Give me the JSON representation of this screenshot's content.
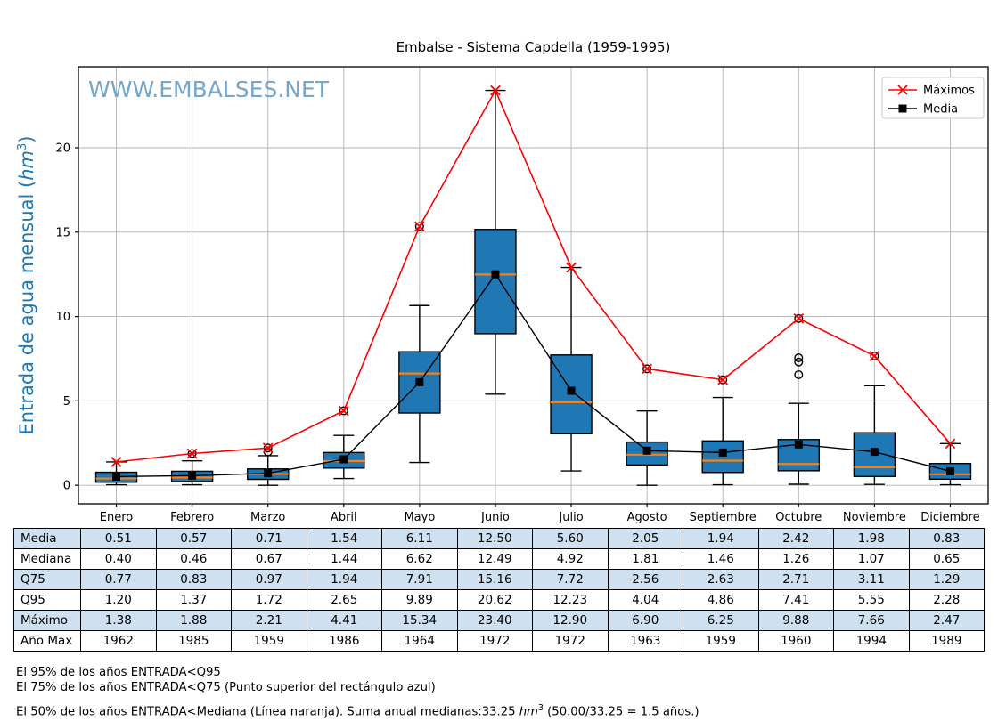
{
  "chart_data": {
    "type": "boxplot",
    "title": "Embalse - Sistema Capdella (1959-1995)",
    "watermark": "WWW.EMBALSES.NET",
    "ylabel": {
      "pre": "Entrada de agua mensual (",
      "unit": "hm",
      "exp": "3",
      "post": ")"
    },
    "categories": [
      "Enero",
      "Febrero",
      "Marzo",
      "Abril",
      "Mayo",
      "Junio",
      "Julio",
      "Agosto",
      "Septiembre",
      "Octubre",
      "Noviembre",
      "Diciembre"
    ],
    "ylim": [
      -1.1,
      24.8
    ],
    "yticks": [
      0,
      5,
      10,
      15,
      20
    ],
    "grid": true,
    "legend": {
      "position": "top-right",
      "items": [
        {
          "label": "Máximos",
          "marker": "x",
          "color": "#ff0000"
        },
        {
          "label": "Media",
          "marker": "square",
          "color": "#000000"
        }
      ]
    },
    "series": [
      {
        "name": "Máximos",
        "type": "line",
        "marker": "x",
        "color": "#ff0000",
        "values": [
          1.38,
          1.88,
          2.21,
          4.41,
          15.34,
          23.4,
          12.9,
          6.9,
          6.25,
          9.88,
          7.66,
          2.47
        ]
      },
      {
        "name": "Media",
        "type": "line",
        "marker": "square",
        "color": "#000000",
        "values": [
          0.51,
          0.57,
          0.71,
          1.54,
          6.11,
          12.5,
          5.6,
          2.05,
          1.94,
          2.42,
          1.98,
          0.83
        ]
      }
    ],
    "boxes": {
      "median": [
        0.4,
        0.46,
        0.67,
        1.44,
        6.62,
        12.49,
        4.92,
        1.81,
        1.46,
        1.26,
        1.07,
        0.65
      ],
      "q1": [
        0.18,
        0.22,
        0.35,
        1.02,
        4.28,
        8.98,
        3.05,
        1.2,
        0.76,
        0.86,
        0.52,
        0.36
      ],
      "q3": [
        0.77,
        0.83,
        0.97,
        1.94,
        7.91,
        15.16,
        7.72,
        2.56,
        2.63,
        2.71,
        3.11,
        1.29
      ],
      "whisker_low": [
        0.03,
        0.03,
        0.0,
        0.4,
        1.35,
        5.4,
        0.85,
        0.0,
        0.03,
        0.06,
        0.05,
        0.03
      ],
      "whisker_high": [
        1.38,
        1.45,
        1.75,
        2.95,
        10.65,
        23.4,
        12.9,
        4.4,
        5.2,
        4.85,
        5.9,
        2.47
      ],
      "outliers": [
        [],
        [
          1.88
        ],
        [
          2.21,
          1.98
        ],
        [
          4.41
        ],
        [
          15.34
        ],
        [],
        [],
        [
          6.9
        ],
        [
          6.25
        ],
        [
          9.88,
          7.55,
          7.3,
          6.55
        ],
        [
          7.66
        ],
        []
      ]
    },
    "stats_extra": {
      "q95": [
        1.2,
        1.37,
        1.72,
        2.65,
        9.89,
        20.62,
        12.23,
        4.04,
        4.86,
        7.41,
        5.55,
        2.28
      ],
      "anio_max": [
        1962,
        1985,
        1959,
        1986,
        1964,
        1972,
        1972,
        1963,
        1959,
        1960,
        1994,
        1989
      ]
    },
    "colors": {
      "box_fill": "#1f77b4",
      "box_edge": "#000000",
      "median_line": "#ff7f0e",
      "max_line": "#ff0000",
      "mean_line": "#000000",
      "grid": "#b3b3b3",
      "frame": "#000000",
      "watermark": "#74a7cb",
      "ylabel": "#1f77b4",
      "legend_border": "#cccccc"
    }
  },
  "table": {
    "row_labels": [
      "Media",
      "Mediana",
      "Q75",
      "Q95",
      "Máximo",
      "Año Max"
    ],
    "rows": [
      [
        "0.51",
        "0.57",
        "0.71",
        "1.54",
        "6.11",
        "12.50",
        "5.60",
        "2.05",
        "1.94",
        "2.42",
        "1.98",
        "0.83"
      ],
      [
        "0.40",
        "0.46",
        "0.67",
        "1.44",
        "6.62",
        "12.49",
        "4.92",
        "1.81",
        "1.46",
        "1.26",
        "1.07",
        "0.65"
      ],
      [
        "0.77",
        "0.83",
        "0.97",
        "1.94",
        "7.91",
        "15.16",
        "7.72",
        "2.56",
        "2.63",
        "2.71",
        "3.11",
        "1.29"
      ],
      [
        "1.20",
        "1.37",
        "1.72",
        "2.65",
        "9.89",
        "20.62",
        "12.23",
        "4.04",
        "4.86",
        "7.41",
        "5.55",
        "2.28"
      ],
      [
        "1.38",
        "1.88",
        "2.21",
        "4.41",
        "15.34",
        "23.40",
        "12.90",
        "6.90",
        "6.25",
        "9.88",
        "7.66",
        "2.47"
      ],
      [
        "1962",
        "1985",
        "1959",
        "1986",
        "1964",
        "1972",
        "1972",
        "1963",
        "1959",
        "1960",
        "1994",
        "1989"
      ]
    ],
    "shaded_rows": [
      0,
      2,
      4
    ],
    "shade_color": "#cfe0f1"
  },
  "footnotes": {
    "line1": "El 95% de los años ENTRADA<Q95",
    "line2": "El 75% de los años ENTRADA<Q75 (Punto superior del rectángulo azul)",
    "line3_pre": "El 50% de los años ENTRADA<Mediana (Línea naranja). Suma anual medianas:33.25 ",
    "line3_unit": "hm",
    "line3_exp": "3",
    "line3_post": " (50.00/33.25 = 1.5 años.)"
  }
}
